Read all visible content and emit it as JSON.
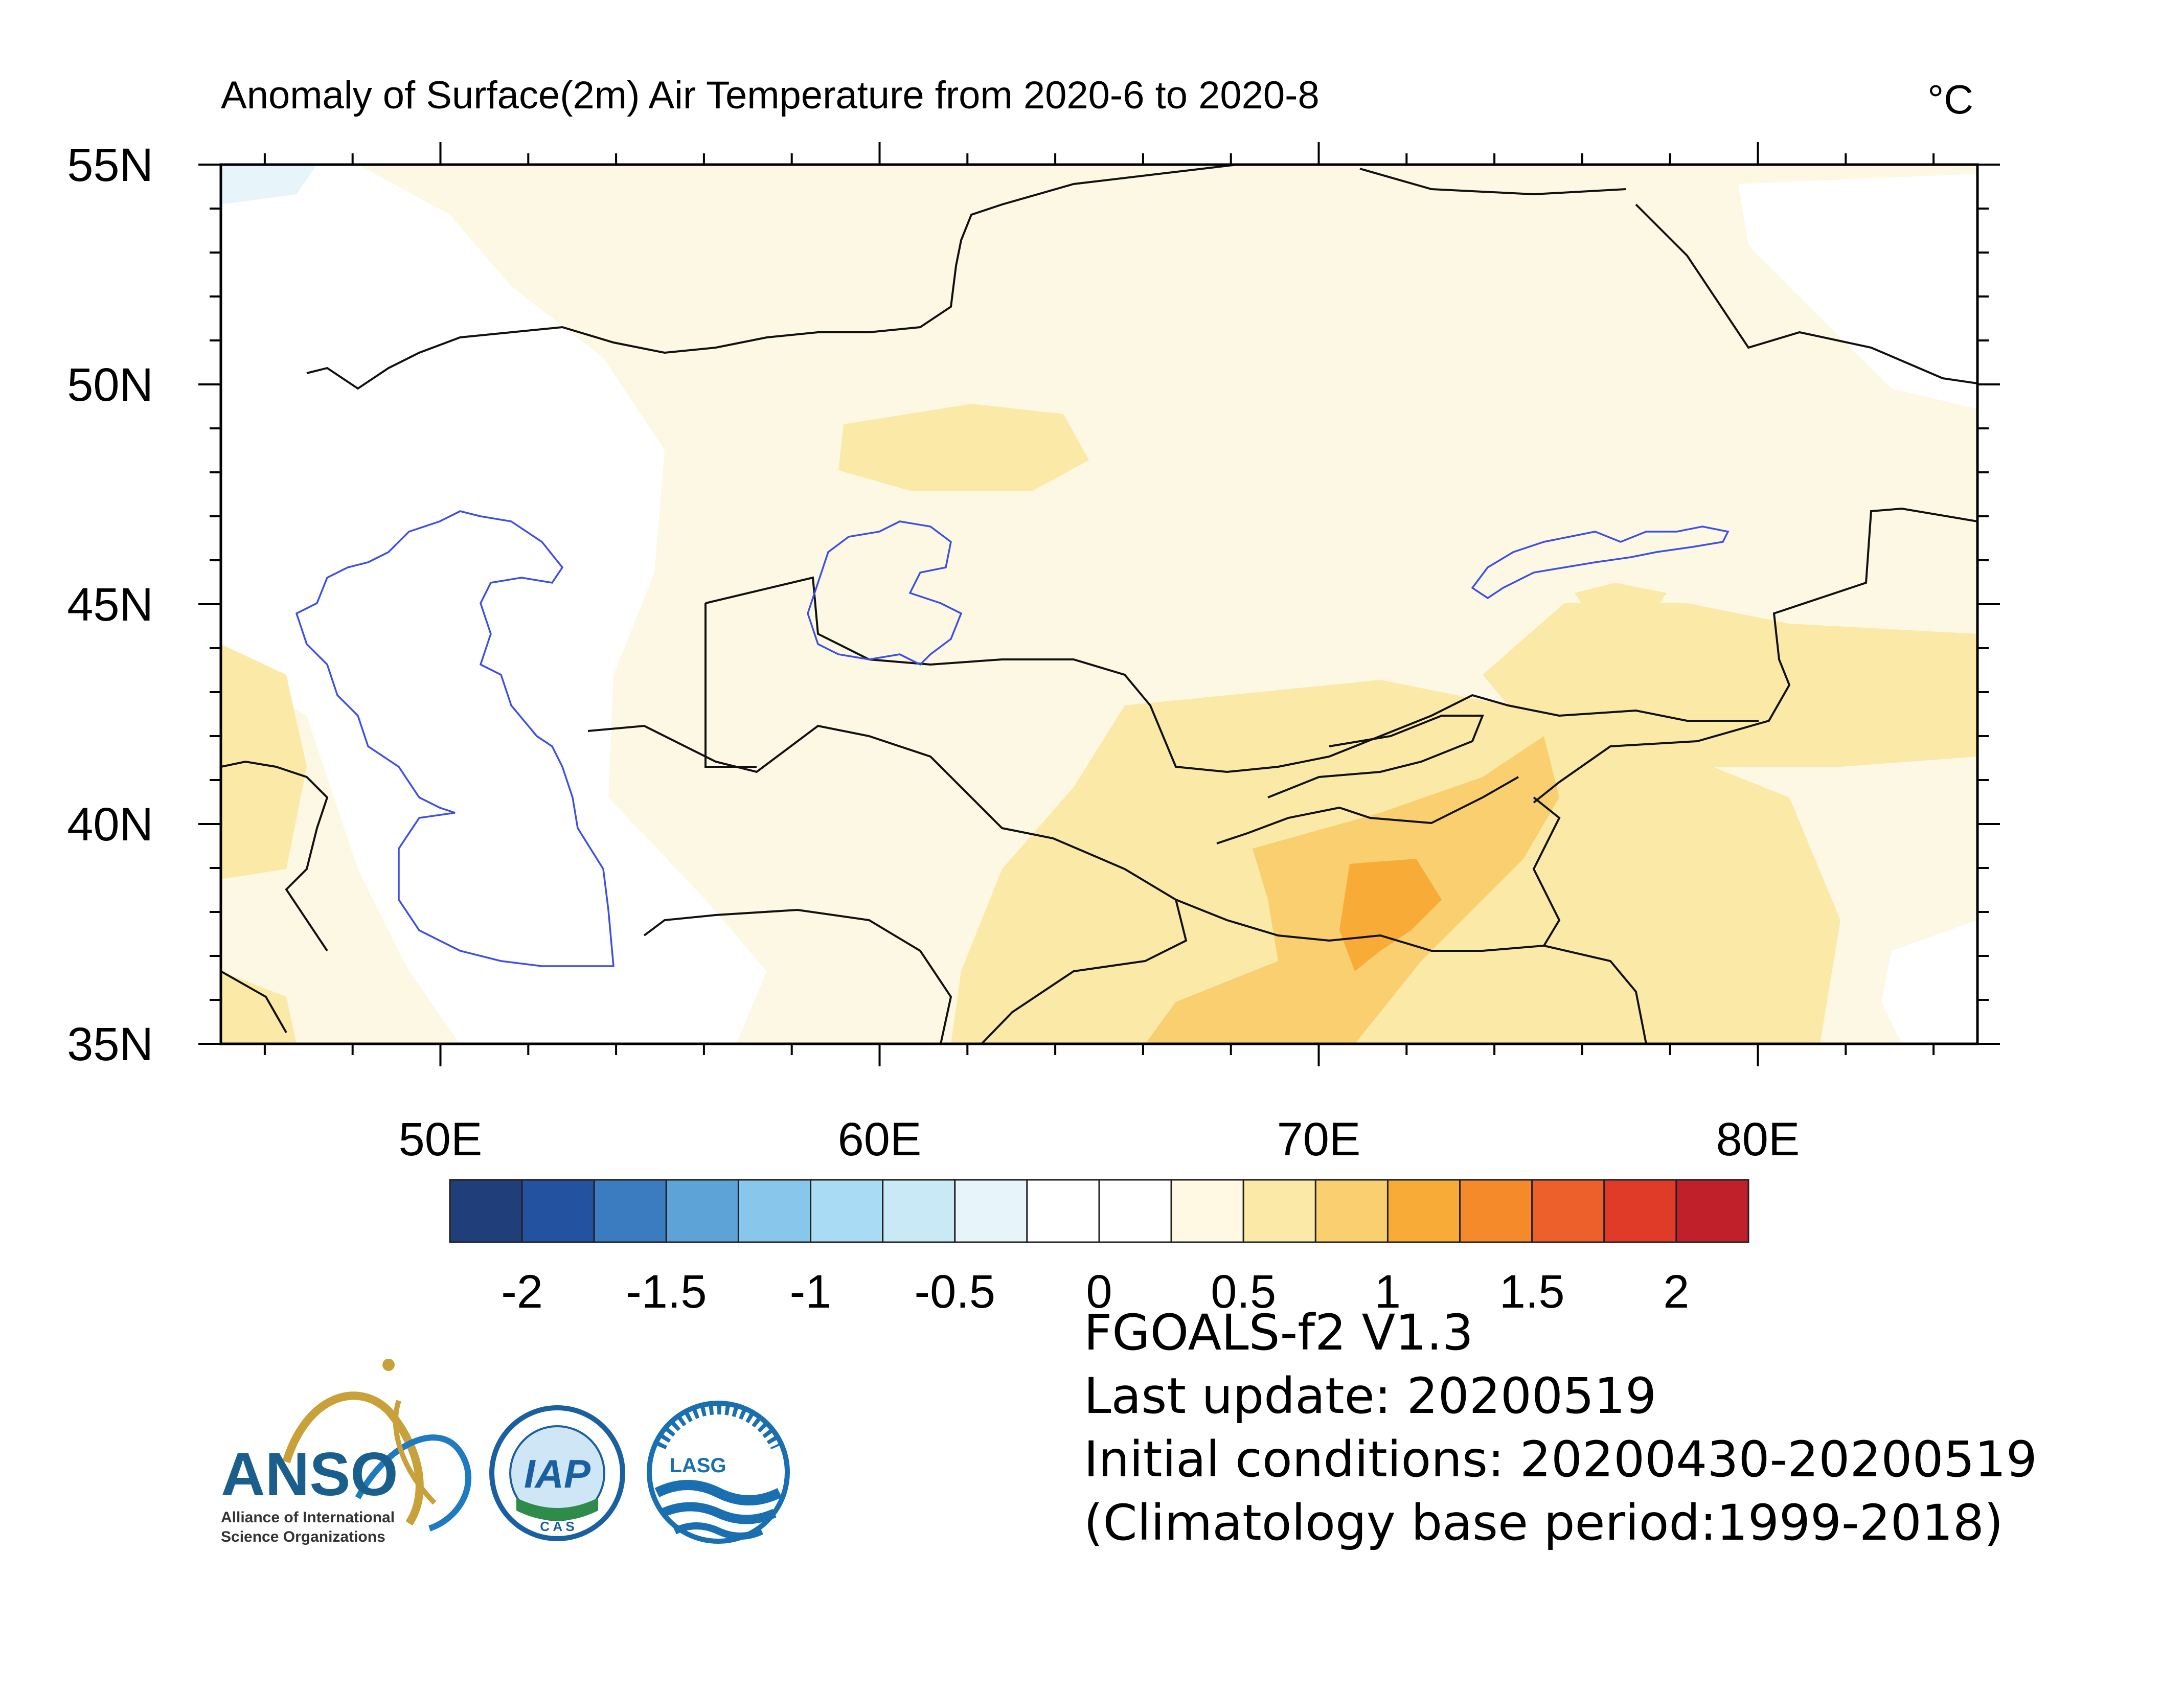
{
  "figure": {
    "title": "Anomaly of Surface(2m) Air Temperature from 2020-6 to 2020-8",
    "unit": "°C"
  },
  "map": {
    "lat_range": [
      35,
      55
    ],
    "lon_range": [
      45,
      85
    ],
    "lat_ticks": [
      {
        "value": 55,
        "label": "55N"
      },
      {
        "value": 50,
        "label": "50N"
      },
      {
        "value": 45,
        "label": "45N"
      },
      {
        "value": 40,
        "label": "40N"
      },
      {
        "value": 35,
        "label": "35N"
      }
    ],
    "lon_ticks": [
      {
        "value": 50,
        "label": "50E"
      },
      {
        "value": 60,
        "label": "60E"
      },
      {
        "value": 70,
        "label": "70E"
      },
      {
        "value": 80,
        "label": "80E"
      }
    ]
  },
  "colorbar": {
    "colors": [
      "#1f3e7a",
      "#2252a0",
      "#3b7cc0",
      "#5ea3d8",
      "#88c6ec",
      "#a9dcf4",
      "#c9e9f7",
      "#e7f5fb",
      "#ffffff",
      "#ffffff",
      "#fff9e3",
      "#fbe9a8",
      "#f9cf70",
      "#f8ab36",
      "#f58a2b",
      "#ee602b",
      "#e03a28",
      "#c0202a"
    ],
    "labels": [
      "-2",
      "-1.5",
      "-1",
      "-0.5",
      "0",
      "0.5",
      "1",
      "1.5",
      "2"
    ],
    "label_values": [
      -2,
      -1.5,
      -1,
      -0.5,
      0,
      0.5,
      1,
      1.5,
      2
    ]
  },
  "info": {
    "model": "FGOALS-f2 V1.3",
    "last_update": "Last update: 20200519",
    "initial_conditions": "Initial conditions: 20200430-20200519",
    "climatology": "(Climatology base period:1999-2018)"
  },
  "logos": {
    "anso": "ANSO",
    "anso_sub1": "Alliance of International",
    "anso_sub2": "Science Organizations",
    "iap": "IAP",
    "cas": "C A S",
    "lasg": "LASG"
  }
}
